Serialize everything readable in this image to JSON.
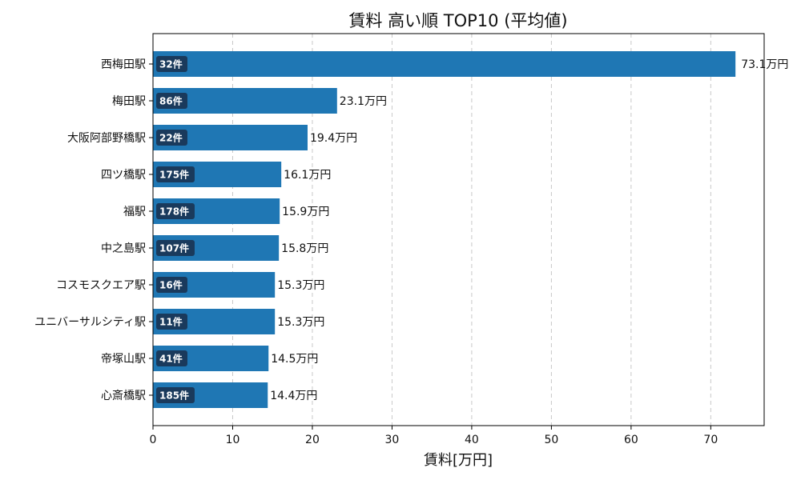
{
  "chart_data": {
    "type": "bar",
    "orientation": "horizontal",
    "title": "賃料 高い順 TOP10 (平均値)",
    "xlabel": "賃料[万円]",
    "ylabel": "",
    "xlim": [
      0,
      76.7
    ],
    "xticks": [
      0,
      10,
      20,
      30,
      40,
      50,
      60,
      70
    ],
    "grid": "vertical dashed",
    "bar_color": "#1f77b4",
    "badge_color": "#1a3a5c",
    "categories": [
      "西梅田駅",
      "梅田駅",
      "大阪阿部野橋駅",
      "四ツ橋駅",
      "福駅",
      "中之島駅",
      "コスモスクエア駅",
      "ユニバーサルシティ駅",
      "帝塚山駅",
      "心斎橋駅"
    ],
    "values": [
      73.1,
      23.1,
      19.4,
      16.1,
      15.9,
      15.8,
      15.3,
      15.3,
      14.5,
      14.4
    ],
    "value_labels": [
      "73.1万円",
      "23.1万円",
      "19.4万円",
      "16.1万円",
      "15.9万円",
      "15.8万円",
      "15.3万円",
      "15.3万円",
      "14.5万円",
      "14.4万円"
    ],
    "count_labels": [
      "32件",
      "86件",
      "22件",
      "175件",
      "178件",
      "107件",
      "16件",
      "11件",
      "41件",
      "185件"
    ]
  }
}
